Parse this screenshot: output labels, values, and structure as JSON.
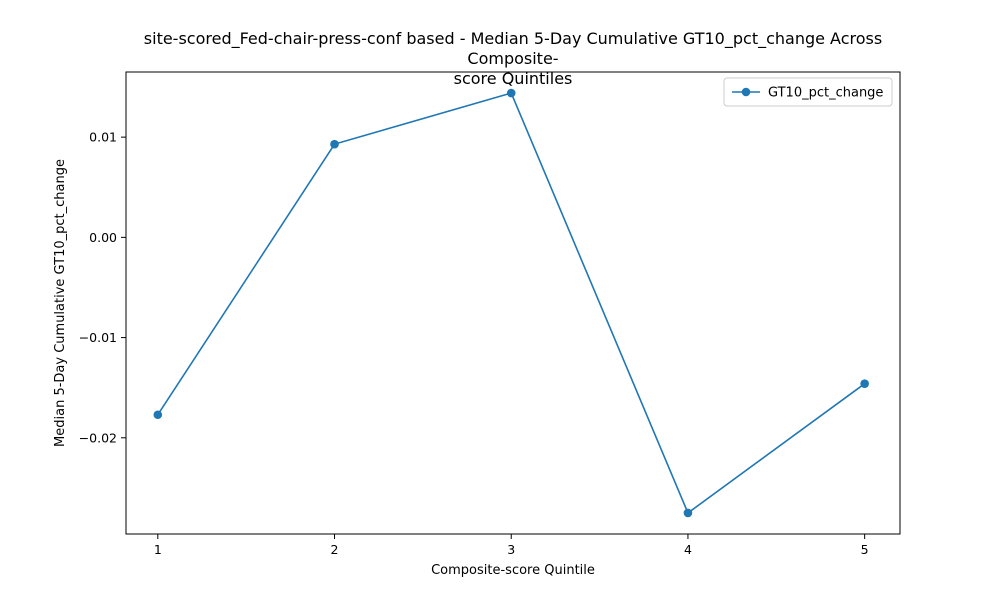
{
  "chart_data": {
    "type": "line",
    "title_line1": "site-scored_Fed-chair-press-conf based - Median 5-Day Cumulative GT10_pct_change Across Composite-",
    "title_line2": "score Quintiles",
    "xlabel": "Composite-score Quintile",
    "ylabel": "Median 5-Day Cumulative GT10_pct_change",
    "x": [
      1,
      2,
      3,
      4,
      5
    ],
    "x_tick_labels": [
      "1",
      "2",
      "3",
      "4",
      "5"
    ],
    "y_ticks": [
      -0.02,
      -0.01,
      0.0,
      0.01
    ],
    "y_tick_labels": [
      "−0.02",
      "−0.01",
      "0.00",
      "0.01"
    ],
    "xlim": [
      0.82,
      5.2
    ],
    "ylim": [
      -0.0296,
      0.0165
    ],
    "series": [
      {
        "name": "GT10_pct_change",
        "color": "#1f77b4",
        "values": [
          -0.0177,
          0.0093,
          0.0144,
          -0.0275,
          -0.0146
        ]
      }
    ],
    "legend": "top-right",
    "grid": false
  }
}
